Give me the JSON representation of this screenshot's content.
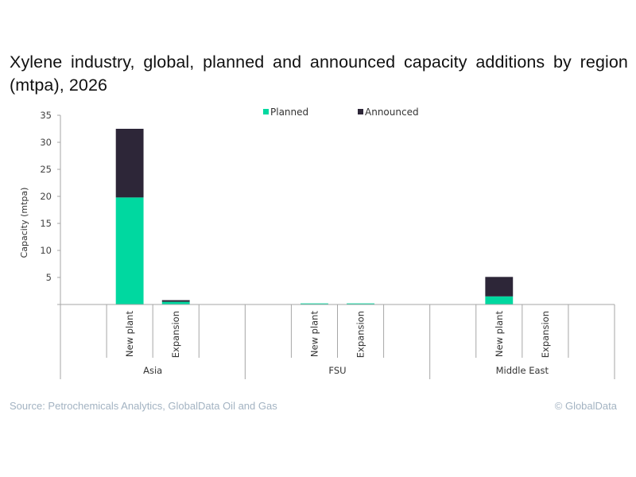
{
  "title": "Xylene industry, global, planned and announced capacity additions by region (mtpa), 2026",
  "footer": {
    "source": "Source: Petrochemicals Analytics, GlobalData Oil and Gas",
    "copyright": "© GlobalData"
  },
  "colors": {
    "planned": "#00d8a0",
    "announced": "#2d2638",
    "axis": "#a6a6a6"
  },
  "chart_data": {
    "type": "bar",
    "stacked": true,
    "title": "Xylene industry, global, planned and announced capacity additions by region (mtpa), 2026",
    "xlabel": "",
    "ylabel": "Capacity (mtpa)",
    "ylim": [
      0,
      35
    ],
    "yticks": [
      5,
      10,
      15,
      20,
      25,
      30,
      35
    ],
    "grid": false,
    "legend_position": "top-center",
    "groups": [
      {
        "name": "Asia",
        "categories": [
          "New plant",
          "Expansion"
        ]
      },
      {
        "name": "FSU",
        "categories": [
          "New plant",
          "Expansion"
        ]
      },
      {
        "name": "Middle East",
        "categories": [
          "New plant",
          "Expansion"
        ]
      }
    ],
    "categories": [
      "Asia - New plant",
      "Asia - Expansion",
      "FSU - New plant",
      "FSU - Expansion",
      "Middle East - New plant",
      "Middle East - Expansion"
    ],
    "series": [
      {
        "name": "Planned",
        "values": [
          19.8,
          0.5,
          0.2,
          0.2,
          1.5,
          0
        ]
      },
      {
        "name": "Announced",
        "values": [
          12.7,
          0.3,
          0,
          0,
          3.6,
          0
        ]
      }
    ]
  }
}
